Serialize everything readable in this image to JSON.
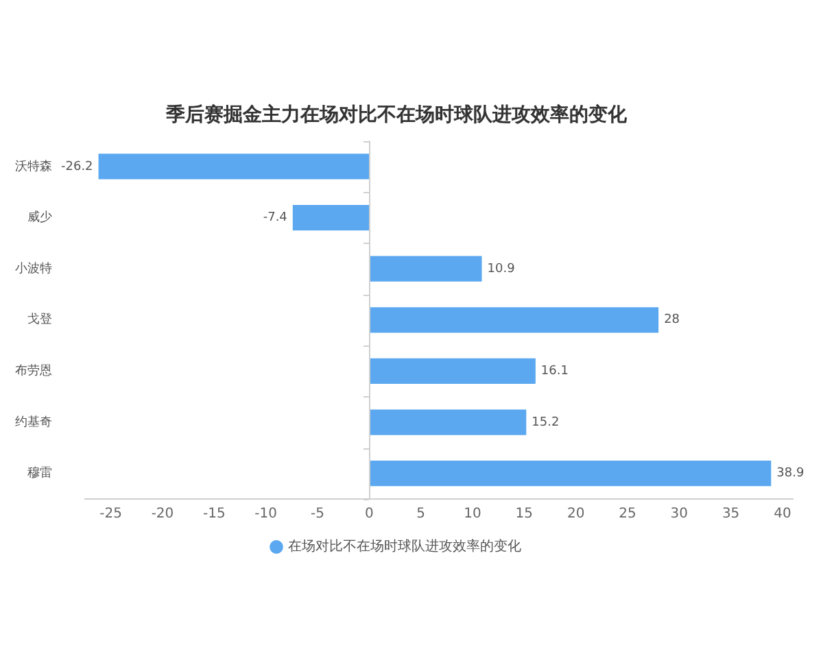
{
  "chart_data": {
    "type": "bar",
    "orientation": "horizontal",
    "title": "季后赛掘金主力在场对比不在场时球队进攻效率的变化",
    "categories": [
      "沃特森",
      "威少",
      "小波特",
      "戈登",
      "布劳恩",
      "约基奇",
      "穆雷"
    ],
    "series": [
      {
        "name": "在场对比不在场时球队进攻效率的变化",
        "color": "#5ba8f0",
        "values": [
          -26.2,
          -7.4,
          10.9,
          28,
          16.1,
          15.2,
          38.9
        ]
      }
    ],
    "xlim": [
      -27.5,
      41
    ],
    "xticks": [
      -25,
      -20,
      -15,
      -10,
      -5,
      0,
      5,
      10,
      15,
      20,
      25,
      30,
      35,
      40
    ],
    "data_labels": true,
    "legend": "bottom"
  }
}
